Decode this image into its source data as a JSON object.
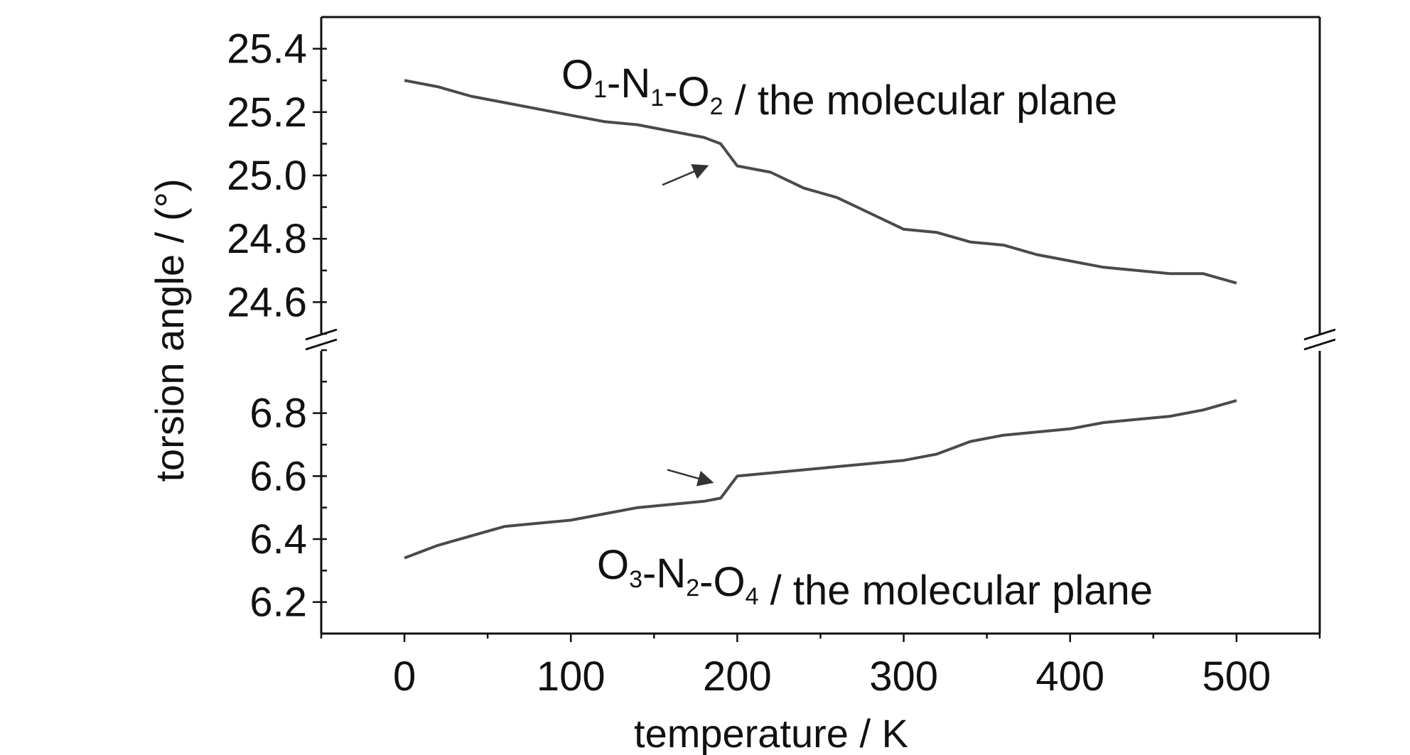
{
  "chart_data": {
    "type": "line",
    "xlabel": "temperature / K",
    "ylabel": "torsion angle / (°)",
    "xlim": [
      -50,
      550
    ],
    "x_ticks": [
      "0",
      "100",
      "200",
      "300",
      "400",
      "500"
    ],
    "broken_y_axis": true,
    "grid": false,
    "panels": [
      {
        "panel": "upper",
        "ylim": [
          24.5,
          25.5
        ],
        "y_ticks": [
          "25.4",
          "25.2",
          "25.0",
          "24.8",
          "24.6"
        ],
        "label_parts": [
          {
            "text": "O",
            "sub": "1"
          },
          {
            "text": "-N",
            "sub": "1"
          },
          {
            "text": "-O",
            "sub": "2"
          },
          {
            "text": " / the molecular plane",
            "sub": ""
          }
        ],
        "series": [
          {
            "x": [
              0,
              20,
              40,
              60,
              80,
              100,
              120,
              140,
              160,
              180,
              190,
              200,
              220,
              240,
              260,
              280,
              300,
              320,
              340,
              360,
              380,
              400,
              420,
              440,
              460,
              480,
              500
            ],
            "values": [
              25.3,
              25.28,
              25.25,
              25.23,
              25.21,
              25.19,
              25.17,
              25.16,
              25.14,
              25.12,
              25.1,
              25.03,
              25.01,
              24.96,
              24.93,
              24.88,
              24.83,
              24.82,
              24.79,
              24.78,
              24.75,
              24.73,
              24.71,
              24.7,
              24.69,
              24.69,
              24.66
            ]
          }
        ],
        "arrow": {
          "from": [
            155,
            24.97
          ],
          "to": [
            182,
            25.03
          ]
        }
      },
      {
        "panel": "lower",
        "ylim": [
          6.1,
          7.0
        ],
        "y_ticks": [
          "6.8",
          "6.6",
          "6.4",
          "6.2"
        ],
        "label_parts": [
          {
            "text": "O",
            "sub": "3"
          },
          {
            "text": "-N",
            "sub": "2"
          },
          {
            "text": "-O",
            "sub": "4"
          },
          {
            "text": " / the molecular plane",
            "sub": ""
          }
        ],
        "series": [
          {
            "x": [
              0,
              20,
              40,
              60,
              80,
              100,
              120,
              140,
              160,
              180,
              190,
              200,
              220,
              240,
              260,
              280,
              300,
              320,
              340,
              360,
              380,
              400,
              420,
              440,
              460,
              480,
              500
            ],
            "values": [
              6.34,
              6.38,
              6.41,
              6.44,
              6.45,
              6.46,
              6.48,
              6.5,
              6.51,
              6.52,
              6.53,
              6.6,
              6.61,
              6.62,
              6.63,
              6.64,
              6.65,
              6.67,
              6.71,
              6.73,
              6.74,
              6.75,
              6.77,
              6.78,
              6.79,
              6.81,
              6.84
            ]
          }
        ],
        "arrow": {
          "from": [
            158,
            6.62
          ],
          "to": [
            185,
            6.58
          ]
        }
      }
    ]
  }
}
